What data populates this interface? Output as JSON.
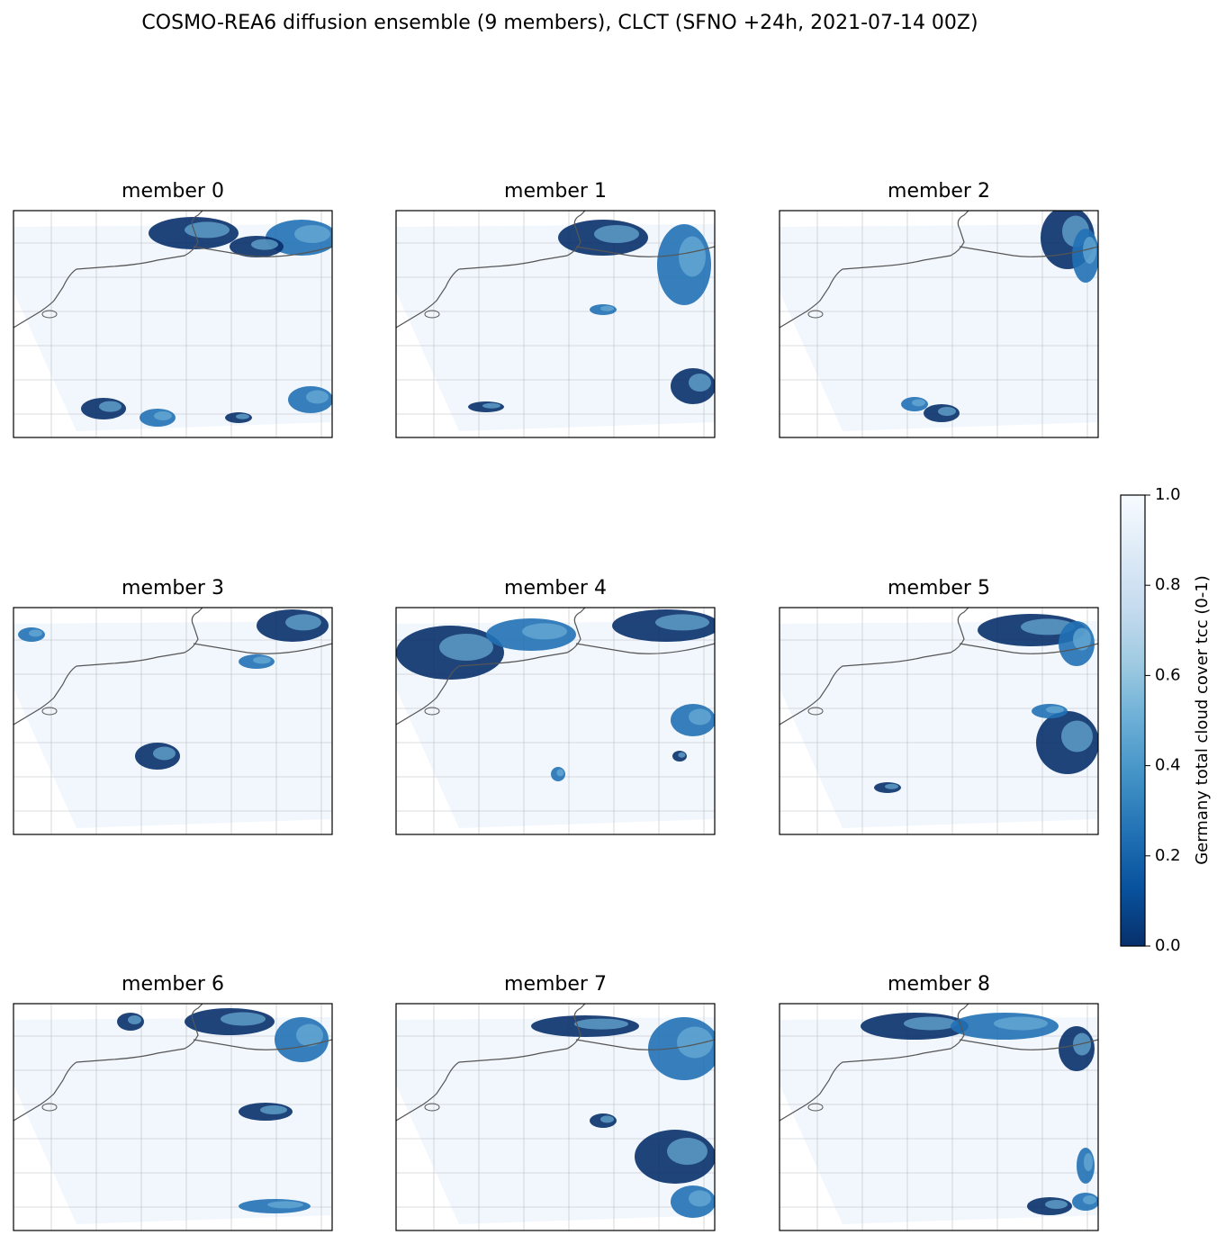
{
  "title": "COSMO-REA6 diffusion ensemble (9 members), CLCT  (SFNO +24h, 2021-07-14 00Z)",
  "panels": [
    {
      "title": "member 0"
    },
    {
      "title": "member 1"
    },
    {
      "title": "member 2"
    },
    {
      "title": "member 3"
    },
    {
      "title": "member 4"
    },
    {
      "title": "member 5"
    },
    {
      "title": "member 6"
    },
    {
      "title": "member 7"
    },
    {
      "title": "member 8"
    }
  ],
  "colorbar": {
    "label": "Germany total cloud cover tcc (0-1)",
    "colormap": "Blues_r",
    "lim": [
      0,
      1
    ],
    "ticks": [
      {
        "value": 0,
        "label": "0.0"
      },
      0.2,
      0.4,
      0.6,
      0.8,
      {
        "value": 1,
        "label": "1.0"
      }
    ]
  }
}
